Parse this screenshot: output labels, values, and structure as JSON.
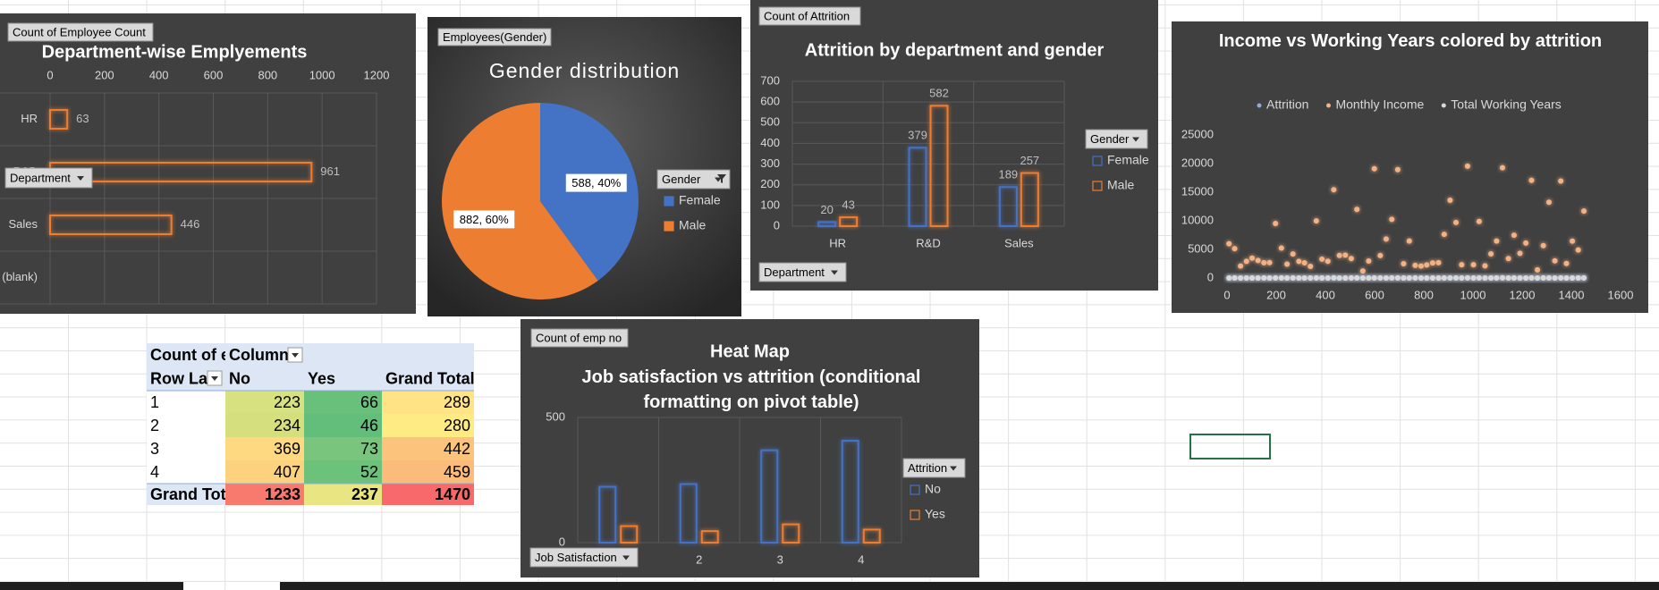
{
  "chart_data": [
    {
      "type": "bar",
      "orientation": "horizontal",
      "title": "Department-wise Emplyements",
      "pivot_value_button": "Count of Employee  Count",
      "pivot_axis_button": "Department",
      "categories": [
        "HR",
        "R&D",
        "Sales",
        "(blank)"
      ],
      "values": [
        63,
        961,
        446,
        null
      ],
      "color": "#ed7d31",
      "xlim": [
        0,
        1200
      ],
      "xticks": [
        0,
        200,
        400,
        600,
        800,
        1000,
        1200
      ],
      "grid": true,
      "data_labels": true
    },
    {
      "type": "pie",
      "title": "Gender distribution",
      "pivot_value_button": "Employees(Gender)",
      "legend_title": "Gender",
      "categories": [
        "Female",
        "Male"
      ],
      "values": [
        588,
        882
      ],
      "value_labels": [
        "588, 40%",
        "882, 60%"
      ],
      "colors": [
        "#4472c4",
        "#ed7d31"
      ]
    },
    {
      "type": "bar",
      "title": "Attrition by department and gender",
      "pivot_value_button": "Count of Attrition",
      "pivot_axis_button": "Department",
      "legend_title": "Gender",
      "categories": [
        "HR",
        "R&D",
        "Sales"
      ],
      "series": [
        {
          "name": "Female",
          "color": "#4472c4",
          "values": [
            20,
            379,
            189
          ]
        },
        {
          "name": "Male",
          "color": "#ed7d31",
          "values": [
            43,
            582,
            257
          ]
        }
      ],
      "ylim": [
        0,
        700
      ],
      "yticks": [
        0,
        100,
        200,
        300,
        400,
        500,
        600,
        700
      ],
      "grid": true,
      "data_labels": true
    },
    {
      "type": "scatter",
      "title": "Income vs Working Years colored by attrition",
      "x": [
        8,
        31,
        55,
        79,
        102,
        126,
        150,
        173,
        197,
        221,
        244,
        268,
        292,
        315,
        339,
        363,
        386,
        410,
        434,
        457,
        481,
        505,
        528,
        552,
        576,
        599,
        623,
        647,
        670,
        694,
        718,
        741,
        765,
        789,
        812,
        836,
        860,
        883,
        907,
        931,
        954,
        978,
        1002,
        1025,
        1049,
        1073,
        1096,
        1120,
        1144,
        1167,
        1191,
        1215,
        1238,
        1262,
        1286,
        1309,
        1333,
        1357,
        1380,
        1404,
        1428,
        1451
      ],
      "series": [
        {
          "name": "Attrition",
          "color": "#8faadc",
          "values": [
            1,
            0,
            1,
            0,
            0,
            0,
            0,
            0,
            0,
            0,
            0,
            0,
            0,
            0,
            1,
            0,
            0,
            0,
            0,
            0,
            0,
            0,
            1,
            1,
            0,
            0,
            0,
            0,
            0,
            0,
            0,
            0,
            0,
            0,
            0,
            1,
            0,
            0,
            0,
            0,
            0,
            0,
            1,
            0,
            0,
            0,
            0,
            0,
            0,
            0,
            0,
            0,
            0,
            1,
            0,
            0,
            0,
            0,
            0,
            0,
            0,
            0
          ]
        },
        {
          "name": "Monthly Income",
          "color": "#f4b183",
          "values": [
            5993,
            5130,
            2090,
            2909,
            3468,
            3068,
            2670,
            2693,
            9526,
            5237,
            2426,
            4193,
            2911,
            2661,
            2028,
            9980,
            3298,
            2935,
            15427,
            3944,
            4011,
            3407,
            11994,
            1232,
            2960,
            19094,
            3919,
            6825,
            10248,
            18947,
            2496,
            6465,
            2206,
            2086,
            2293,
            2645,
            2683,
            7639,
            13591,
            9714,
            2319,
            19545,
            2326,
            9884,
            2133,
            4226,
            6465,
            19272,
            3405,
            7484,
            4312,
            6120,
            17068,
            1420,
            5673,
            13245,
            3015,
            16959,
            2541,
            6450,
            4895,
            11691
          ]
        },
        {
          "name": "Total Working Years",
          "color": "#d9d9d9",
          "values": [
            8,
            10,
            7,
            8,
            6,
            8,
            12,
            1,
            10,
            17,
            6,
            10,
            5,
            3,
            6,
            10,
            7,
            1,
            31,
            6,
            5,
            10,
            13,
            0,
            8,
            26,
            10,
            6,
            24,
            22,
            7,
            9,
            10,
            1,
            3,
            6,
            7,
            10,
            13,
            16,
            1,
            29,
            5,
            10,
            4,
            9,
            17,
            30,
            5,
            10,
            6,
            9,
            21,
            1,
            11,
            19,
            3,
            23,
            2,
            9,
            12,
            15
          ]
        }
      ],
      "xlim": [
        0,
        1600
      ],
      "xticks": [
        0,
        200,
        400,
        600,
        800,
        1000,
        1200,
        1400,
        1600
      ],
      "ylim": [
        0,
        25000
      ],
      "yticks": [
        0,
        5000,
        10000,
        15000,
        20000,
        25000
      ],
      "grid": false
    },
    {
      "type": "bar",
      "title": "Heat Map",
      "subtitle": "Job satisfaction vs attrition (conditional formatting on pivot table)",
      "pivot_value_button": "Count of emp no",
      "pivot_axis_button": "Job Satisfaction",
      "legend_title": "Attrition",
      "categories": [
        1,
        2,
        3,
        4
      ],
      "series": [
        {
          "name": "No",
          "color": "#4472c4",
          "values": [
            223,
            234,
            369,
            407
          ]
        },
        {
          "name": "Yes",
          "color": "#ed7d31",
          "values": [
            66,
            46,
            73,
            52
          ]
        }
      ],
      "ylim": [
        0,
        500
      ],
      "yticks": [
        0,
        500
      ],
      "grid": true,
      "data_labels": false
    }
  ],
  "pivot_table": {
    "corner": "Count of e",
    "column_header": "Column",
    "row_header": "Row Lal",
    "columns": [
      "No",
      "Yes",
      "Grand Total"
    ],
    "rows": [
      {
        "label": 1,
        "values": [
          223,
          66,
          289
        ]
      },
      {
        "label": 2,
        "values": [
          234,
          46,
          280
        ]
      },
      {
        "label": 3,
        "values": [
          369,
          73,
          442
        ]
      },
      {
        "label": 4,
        "values": [
          407,
          52,
          459
        ]
      }
    ],
    "total": {
      "label": "Grand Tot",
      "values": [
        1233,
        237,
        1470
      ]
    }
  }
}
